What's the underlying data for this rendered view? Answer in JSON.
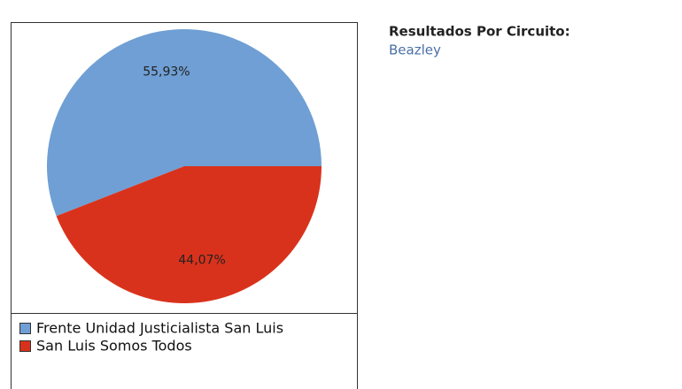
{
  "chart_data": {
    "type": "pie",
    "categories": [
      "Frente Unidad Justicialista San Luis",
      "San Luis Somos Todos"
    ],
    "values": [
      55.93,
      44.07
    ],
    "value_labels": [
      "55,93%",
      "44,07%"
    ],
    "colors": [
      "#6f9fd4",
      "#d9321c"
    ]
  },
  "sidebar": {
    "heading": "Resultados Por Circuito:",
    "subheading": "Beazley"
  }
}
